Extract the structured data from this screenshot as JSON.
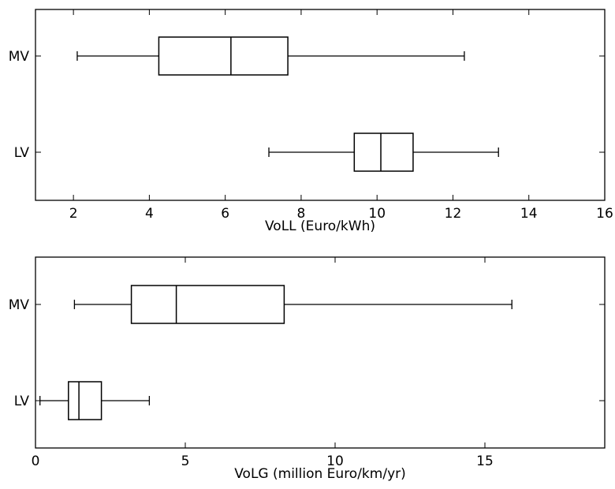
{
  "chart_data": [
    {
      "type": "boxplot",
      "orientation": "horizontal",
      "xlabel": "VoLL (Euro/kWh)",
      "xlim": [
        1,
        16
      ],
      "xticks": [
        2,
        4,
        6,
        8,
        10,
        12,
        14,
        16
      ],
      "categories": [
        "MV",
        "LV"
      ],
      "boxes": [
        {
          "label": "MV",
          "whisker_low": 2.1,
          "q1": 4.25,
          "median": 6.15,
          "q3": 7.65,
          "whisker_high": 12.3
        },
        {
          "label": "LV",
          "whisker_low": 7.15,
          "q1": 9.4,
          "median": 10.1,
          "q3": 10.95,
          "whisker_high": 13.2
        }
      ]
    },
    {
      "type": "boxplot",
      "orientation": "horizontal",
      "xlabel": "VoLG (million Euro/km/yr)",
      "xlim": [
        0,
        19
      ],
      "xticks": [
        0,
        5,
        10,
        15
      ],
      "categories": [
        "MV",
        "LV"
      ],
      "boxes": [
        {
          "label": "MV",
          "whisker_low": 1.3,
          "q1": 3.2,
          "median": 4.7,
          "q3": 8.3,
          "whisker_high": 15.9
        },
        {
          "label": "LV",
          "whisker_low": 0.15,
          "q1": 1.1,
          "median": 1.45,
          "q3": 2.2,
          "whisker_high": 3.8
        }
      ]
    }
  ]
}
